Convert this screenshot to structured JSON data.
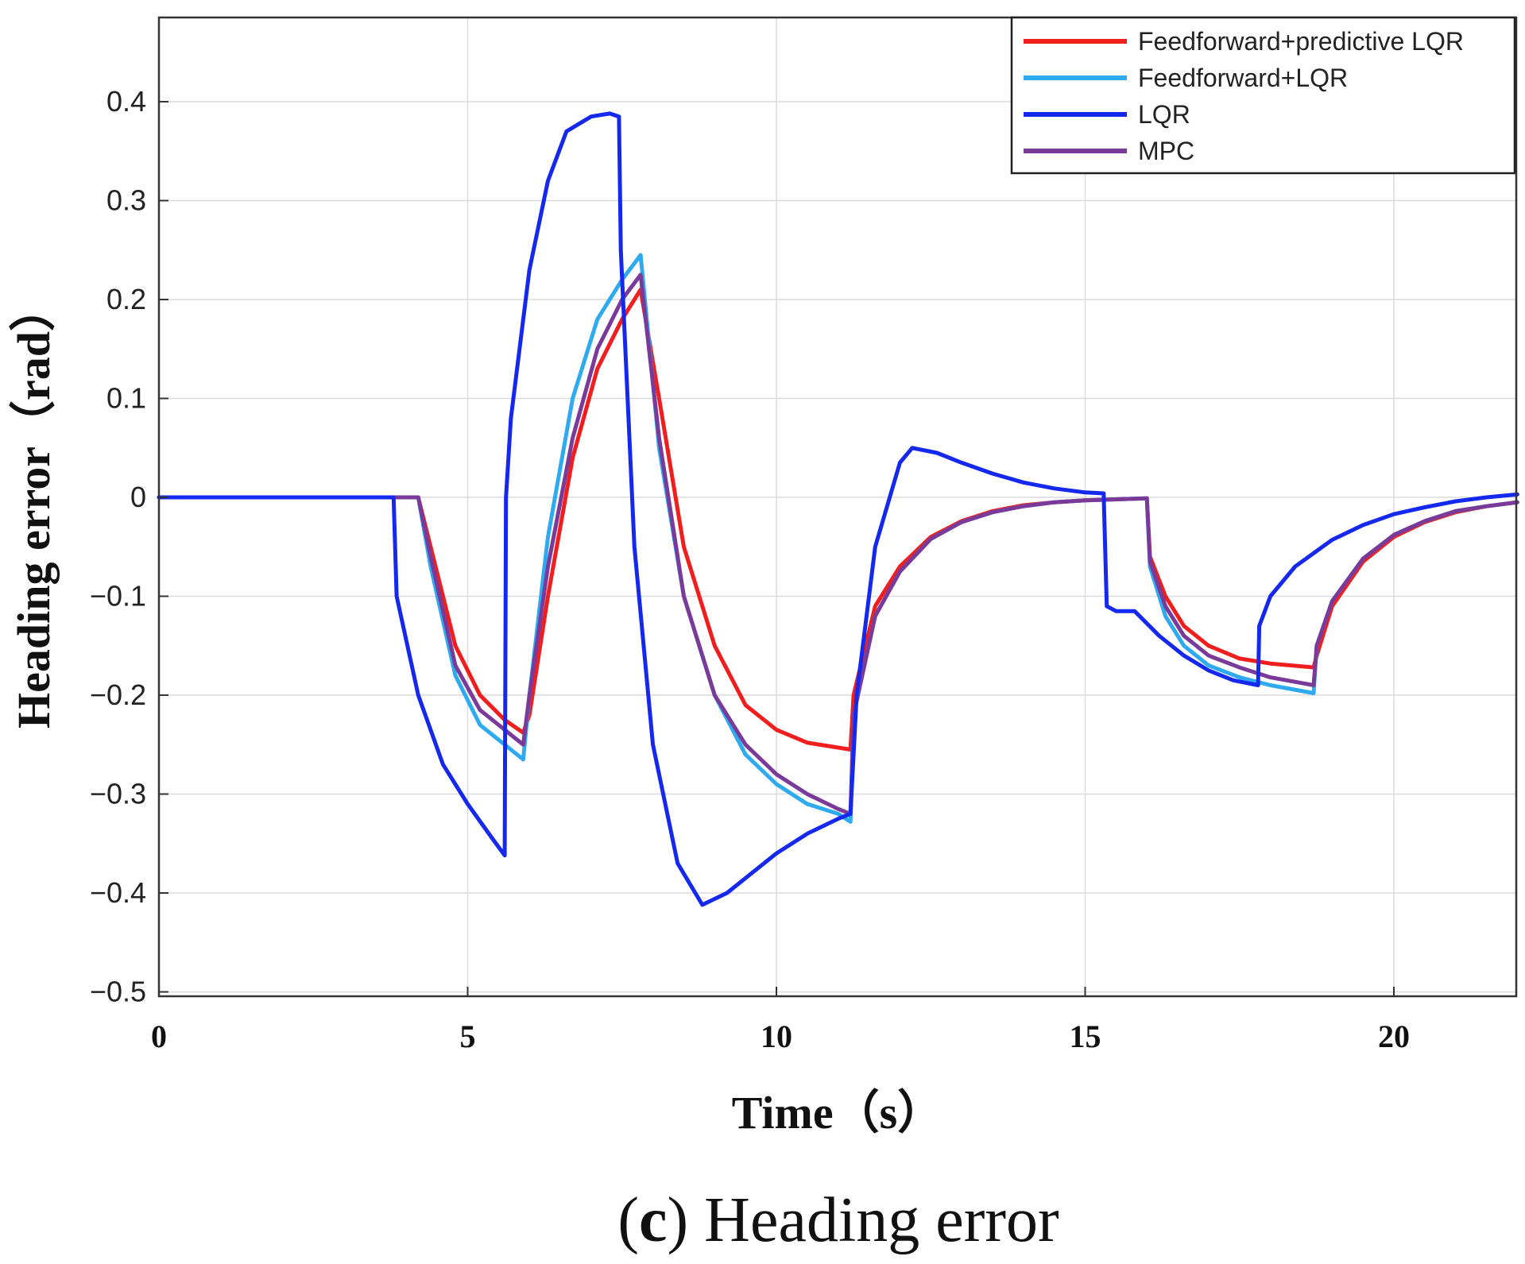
{
  "caption": {
    "letter": "c",
    "text": "Heading error"
  },
  "chart_data": {
    "type": "line",
    "title": "",
    "xlabel": "Time（s）",
    "ylabel": "Heading error（rad）",
    "xlim": [
      0,
      22
    ],
    "ylim": [
      -0.5,
      0.5
    ],
    "xticks": [
      0,
      5,
      10,
      15,
      20
    ],
    "yticks": [
      0.4,
      0.3,
      0.2,
      0.1,
      0,
      -0.1,
      -0.2,
      -0.3,
      -0.4,
      -0.5
    ],
    "xtick_labels": [
      "0",
      "5",
      "10",
      "15",
      "20"
    ],
    "ytick_labels": [
      "0.4",
      "0.3",
      "0.2",
      "0.1",
      "0",
      "−0.1",
      "−0.2",
      "−0.3",
      "−0.4",
      "−0.5"
    ],
    "grid": true,
    "legend_position": "top-right",
    "series": [
      {
        "name": "Feedforward+predictive LQR",
        "color": "#f21d1d",
        "x": [
          0,
          4.2,
          4.4,
          4.8,
          5.2,
          5.6,
          5.9,
          6.0,
          6.3,
          6.7,
          7.1,
          7.5,
          7.8,
          8.1,
          8.5,
          9.0,
          9.5,
          10.0,
          10.5,
          11.0,
          11.2,
          11.25,
          11.6,
          12.0,
          12.5,
          13.0,
          13.5,
          14.0,
          14.5,
          15.0,
          15.5,
          16.0,
          16.05,
          16.3,
          16.6,
          17.0,
          17.5,
          18.0,
          18.7,
          18.75,
          19.0,
          19.5,
          20.0,
          20.5,
          21.0,
          21.5,
          22.0
        ],
        "y": [
          0,
          0,
          -0.05,
          -0.15,
          -0.2,
          -0.225,
          -0.238,
          -0.22,
          -0.1,
          0.04,
          0.13,
          0.18,
          0.21,
          0.1,
          -0.05,
          -0.15,
          -0.21,
          -0.235,
          -0.248,
          -0.253,
          -0.255,
          -0.2,
          -0.11,
          -0.07,
          -0.04,
          -0.024,
          -0.014,
          -0.008,
          -0.005,
          -0.003,
          -0.002,
          -0.001,
          -0.06,
          -0.1,
          -0.13,
          -0.15,
          -0.163,
          -0.168,
          -0.172,
          -0.16,
          -0.11,
          -0.065,
          -0.04,
          -0.025,
          -0.015,
          -0.009,
          -0.005
        ]
      },
      {
        "name": "Feedforward+LQR",
        "color": "#2eaaf0",
        "x": [
          0,
          4.2,
          4.4,
          4.8,
          5.2,
          5.6,
          5.9,
          6.0,
          6.3,
          6.7,
          7.1,
          7.5,
          7.8,
          8.1,
          8.5,
          9.0,
          9.5,
          10.0,
          10.5,
          11.0,
          11.2,
          11.25,
          11.6,
          12.0,
          12.5,
          13.0,
          13.5,
          14.0,
          14.5,
          15.0,
          15.5,
          16.0,
          16.05,
          16.3,
          16.6,
          17.0,
          17.5,
          18.0,
          18.7,
          18.75,
          19.0,
          19.5,
          20.0,
          20.5,
          21.0,
          21.5,
          22.0
        ],
        "y": [
          0,
          0,
          -0.07,
          -0.18,
          -0.23,
          -0.25,
          -0.265,
          -0.2,
          -0.04,
          0.1,
          0.18,
          0.22,
          0.245,
          0.05,
          -0.1,
          -0.2,
          -0.26,
          -0.29,
          -0.31,
          -0.32,
          -0.328,
          -0.22,
          -0.12,
          -0.075,
          -0.042,
          -0.025,
          -0.015,
          -0.009,
          -0.005,
          -0.003,
          -0.002,
          -0.001,
          -0.07,
          -0.12,
          -0.15,
          -0.17,
          -0.182,
          -0.19,
          -0.198,
          -0.15,
          -0.105,
          -0.062,
          -0.038,
          -0.024,
          -0.014,
          -0.009,
          -0.005
        ]
      },
      {
        "name": "LQR",
        "color": "#1428f0",
        "x": [
          0,
          3.8,
          3.85,
          4.2,
          4.6,
          5.0,
          5.4,
          5.6,
          5.62,
          5.7,
          6.0,
          6.3,
          6.6,
          7.0,
          7.3,
          7.45,
          7.48,
          7.7,
          8.0,
          8.4,
          8.8,
          9.2,
          9.6,
          10.0,
          10.5,
          11.0,
          11.2,
          11.3,
          11.6,
          12.0,
          12.2,
          12.6,
          13.0,
          13.5,
          14.0,
          14.5,
          15.0,
          15.3,
          15.35,
          15.5,
          15.8,
          16.2,
          16.6,
          17.0,
          17.4,
          17.8,
          17.82,
          18.0,
          18.4,
          19.0,
          19.5,
          20.0,
          20.5,
          21.0,
          21.5,
          22.0
        ],
        "y": [
          0,
          0,
          -0.1,
          -0.2,
          -0.27,
          -0.31,
          -0.345,
          -0.362,
          0.0,
          0.08,
          0.23,
          0.32,
          0.37,
          0.385,
          0.388,
          0.385,
          0.25,
          -0.05,
          -0.25,
          -0.37,
          -0.412,
          -0.4,
          -0.38,
          -0.36,
          -0.34,
          -0.325,
          -0.32,
          -0.2,
          -0.05,
          0.035,
          0.05,
          0.045,
          0.035,
          0.024,
          0.015,
          0.009,
          0.005,
          0.004,
          -0.11,
          -0.115,
          -0.115,
          -0.14,
          -0.16,
          -0.175,
          -0.185,
          -0.19,
          -0.13,
          -0.1,
          -0.07,
          -0.043,
          -0.028,
          -0.017,
          -0.01,
          -0.004,
          0.0,
          0.003
        ]
      },
      {
        "name": "MPC",
        "color": "#7a3a9a",
        "x": [
          0,
          4.2,
          4.4,
          4.8,
          5.2,
          5.6,
          5.9,
          6.0,
          6.3,
          6.7,
          7.1,
          7.5,
          7.8,
          8.1,
          8.5,
          9.0,
          9.5,
          10.0,
          10.5,
          11.0,
          11.2,
          11.25,
          11.6,
          12.0,
          12.5,
          13.0,
          13.5,
          14.0,
          14.5,
          15.0,
          15.5,
          16.0,
          16.05,
          16.3,
          16.6,
          17.0,
          17.5,
          18.0,
          18.7,
          18.75,
          19.0,
          19.5,
          20.0,
          20.5,
          21.0,
          21.5,
          22.0
        ],
        "y": [
          0,
          0,
          -0.06,
          -0.17,
          -0.215,
          -0.235,
          -0.25,
          -0.2,
          -0.07,
          0.06,
          0.15,
          0.2,
          0.225,
          0.06,
          -0.1,
          -0.2,
          -0.25,
          -0.28,
          -0.3,
          -0.315,
          -0.32,
          -0.22,
          -0.12,
          -0.075,
          -0.042,
          -0.025,
          -0.015,
          -0.009,
          -0.005,
          -0.003,
          -0.002,
          -0.001,
          -0.065,
          -0.11,
          -0.14,
          -0.16,
          -0.172,
          -0.182,
          -0.19,
          -0.15,
          -0.105,
          -0.062,
          -0.038,
          -0.024,
          -0.014,
          -0.009,
          -0.005
        ]
      }
    ]
  }
}
